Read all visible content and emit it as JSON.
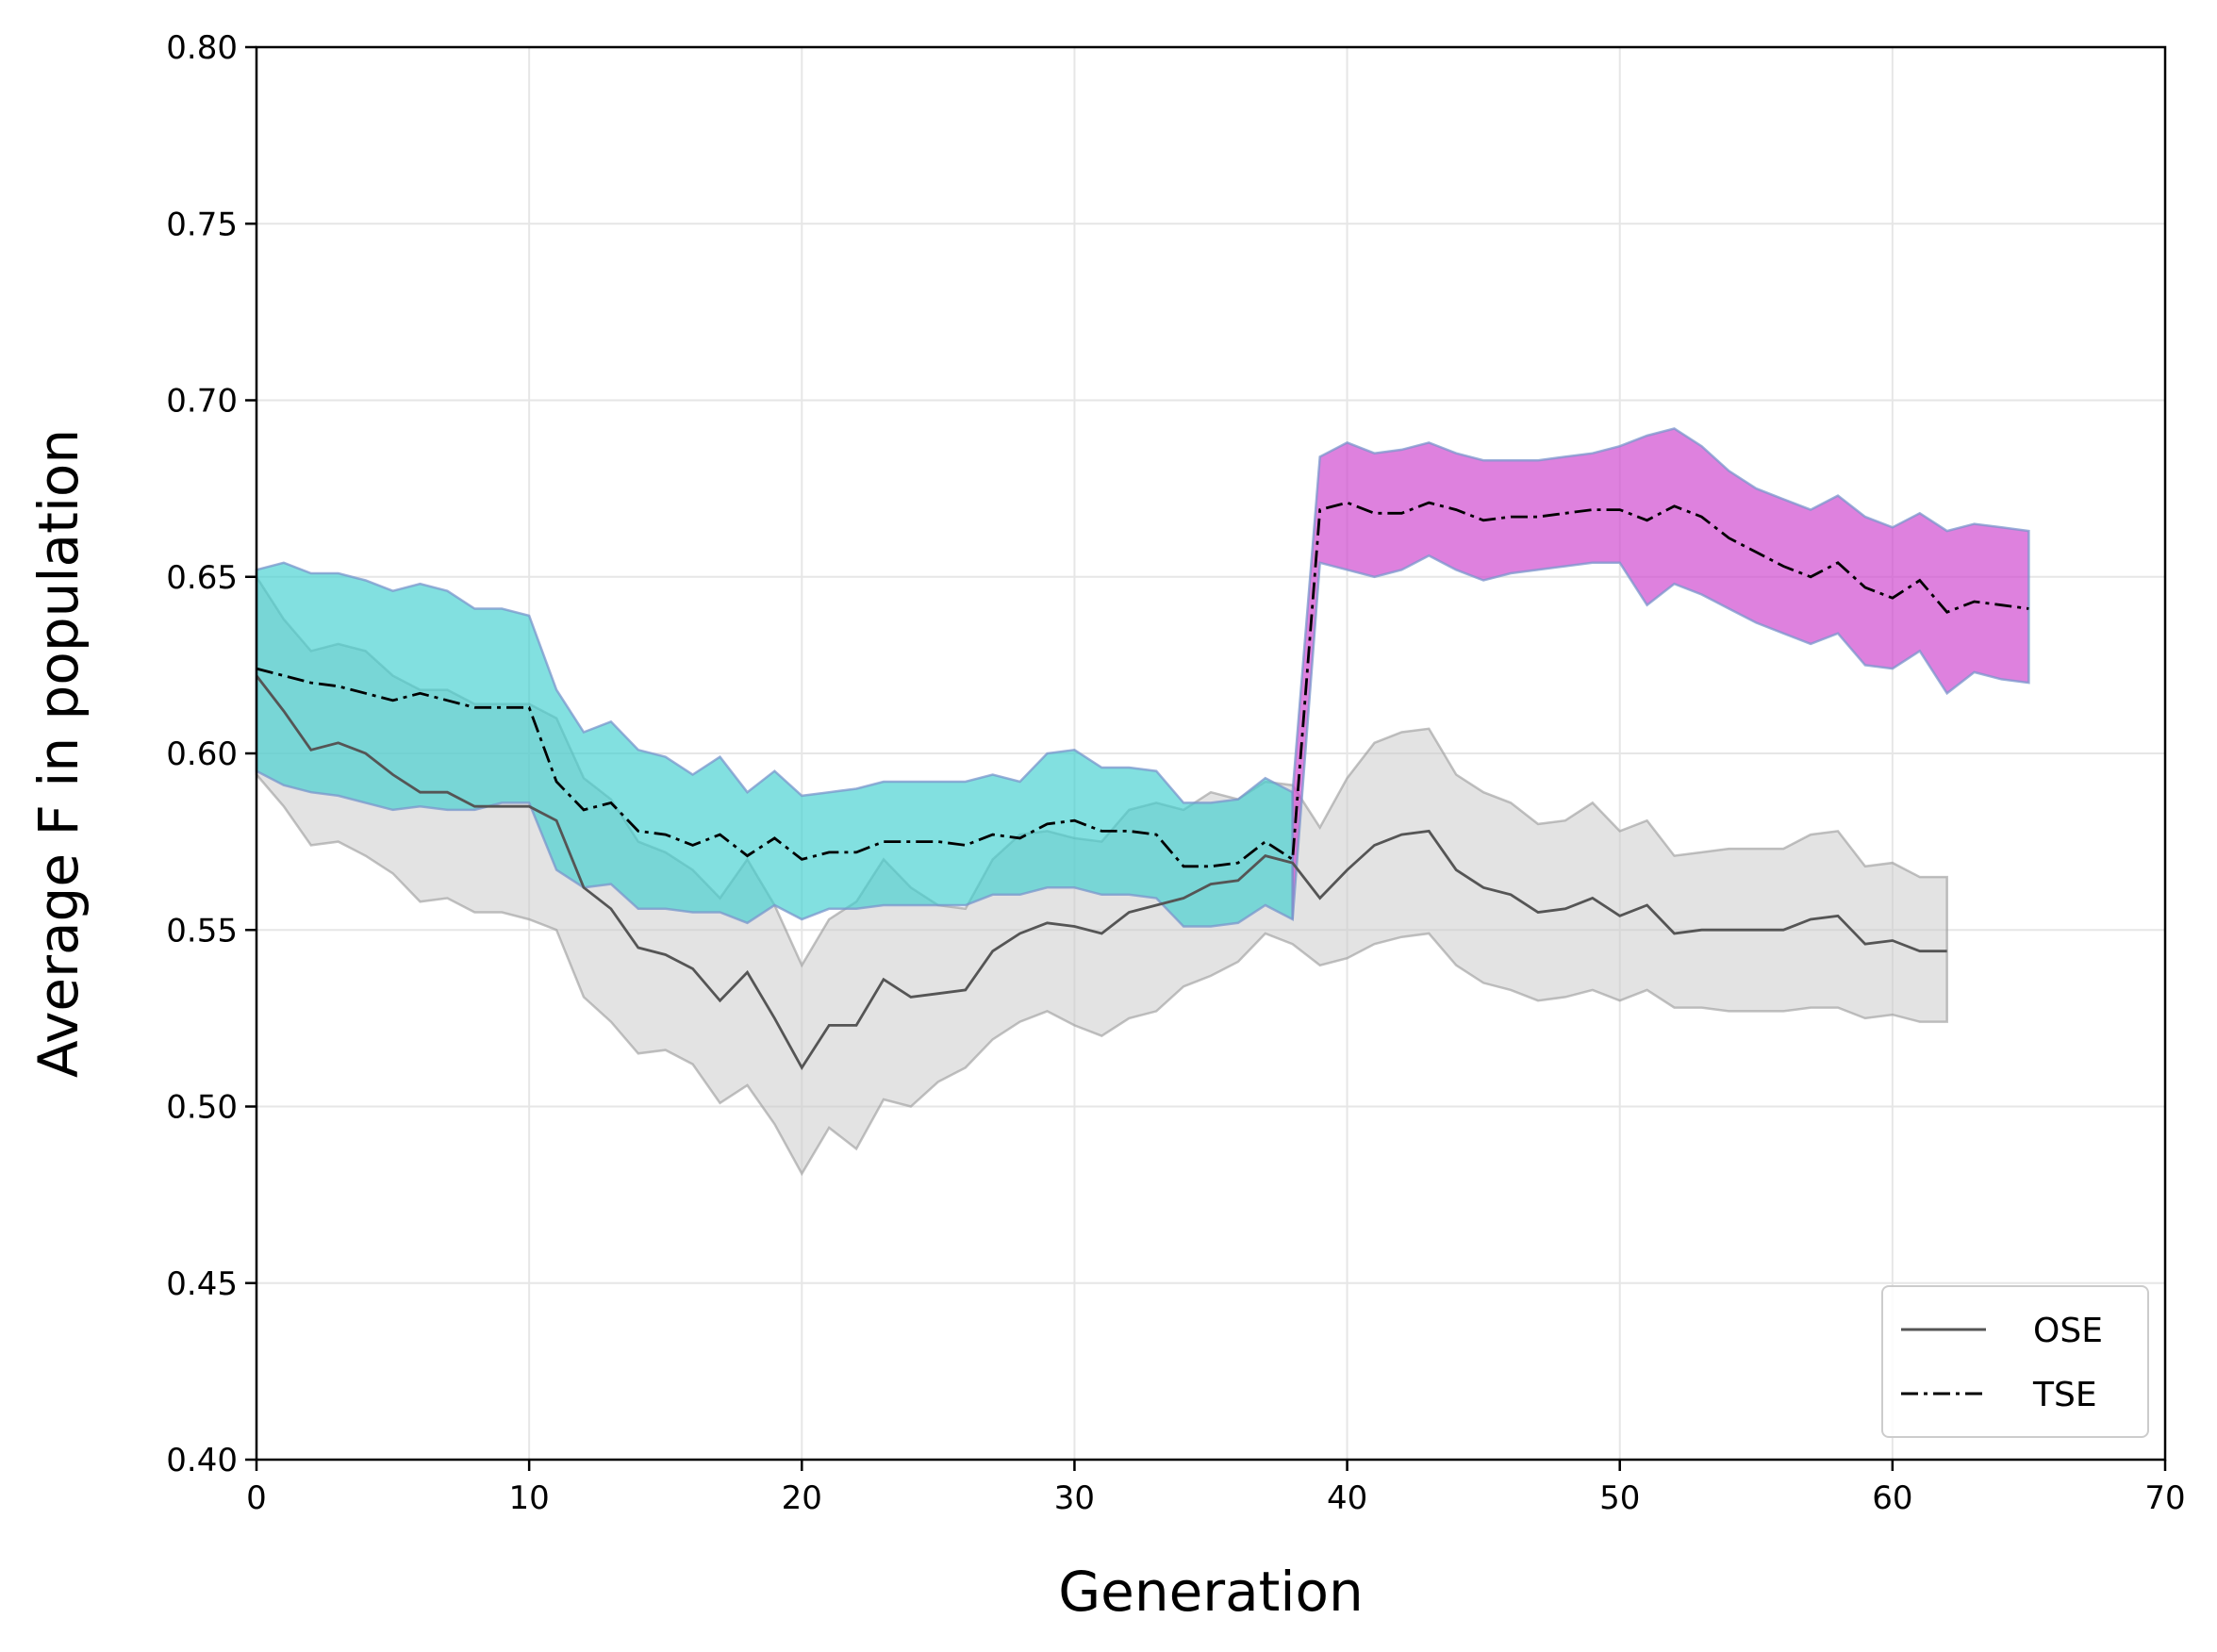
{
  "chart_data": {
    "type": "line",
    "title": "",
    "xlabel": "Generation",
    "ylabel": "Average F in population",
    "xlim": [
      0,
      70
    ],
    "ylim": [
      0.4,
      0.8
    ],
    "grid": true,
    "legend_position": "bottom-right",
    "x_ticks": [
      "0",
      "10",
      "20",
      "30",
      "40",
      "50",
      "60",
      "70"
    ],
    "y_ticks": [
      "0.40",
      "0.45",
      "0.50",
      "0.55",
      "0.60",
      "0.65",
      "0.70",
      "0.75",
      "0.80"
    ],
    "colors": {
      "ose_band": "#c8c8c8",
      "ose_line": "#555555",
      "tse_band_phase1": "#3fcfcf",
      "tse_band_phase2": "#cf45cf",
      "tse_line": "#000000",
      "band_edge": "#7a96cc",
      "grid": "#e6e6e6"
    },
    "series": [
      {
        "name": "OSE",
        "style": "solid",
        "x": [
          0,
          1,
          2,
          3,
          4,
          5,
          6,
          7,
          8,
          9,
          10,
          11,
          12,
          13,
          14,
          15,
          16,
          17,
          18,
          19,
          20,
          21,
          22,
          23,
          24,
          25,
          26,
          27,
          28,
          29,
          30,
          31,
          32,
          33,
          34,
          35,
          36,
          37,
          38,
          39,
          40,
          41,
          42,
          43,
          44,
          45,
          46,
          47,
          48,
          49,
          50,
          51,
          52,
          53,
          54,
          55,
          56,
          57,
          58,
          59,
          60,
          61,
          62
        ],
        "mean": [
          0.622,
          0.612,
          0.601,
          0.603,
          0.6,
          0.594,
          0.589,
          0.589,
          0.585,
          0.585,
          0.585,
          0.581,
          0.562,
          0.556,
          0.545,
          0.543,
          0.539,
          0.53,
          0.538,
          0.525,
          0.511,
          0.523,
          0.523,
          0.536,
          0.531,
          0.532,
          0.533,
          0.544,
          0.549,
          0.552,
          0.551,
          0.549,
          0.555,
          0.557,
          0.559,
          0.563,
          0.564,
          0.571,
          0.569,
          0.559,
          0.567,
          0.574,
          0.577,
          0.578,
          0.567,
          0.562,
          0.56,
          0.555,
          0.556,
          0.559,
          0.554,
          0.557,
          0.549,
          0.55,
          0.55,
          0.55,
          0.55,
          0.553,
          0.554,
          0.546,
          0.547,
          0.544,
          0.544
        ],
        "upper": [
          0.65,
          0.638,
          0.629,
          0.631,
          0.629,
          0.622,
          0.618,
          0.618,
          0.614,
          0.614,
          0.614,
          0.61,
          0.593,
          0.587,
          0.575,
          0.572,
          0.567,
          0.559,
          0.57,
          0.557,
          0.54,
          0.553,
          0.558,
          0.57,
          0.562,
          0.557,
          0.556,
          0.57,
          0.577,
          0.578,
          0.576,
          0.575,
          0.584,
          0.586,
          0.584,
          0.589,
          0.587,
          0.592,
          0.591,
          0.579,
          0.593,
          0.603,
          0.606,
          0.607,
          0.594,
          0.589,
          0.586,
          0.58,
          0.581,
          0.586,
          0.578,
          0.581,
          0.571,
          0.572,
          0.573,
          0.573,
          0.573,
          0.577,
          0.578,
          0.568,
          0.569,
          0.565,
          0.565
        ],
        "lower": [
          0.594,
          0.585,
          0.574,
          0.575,
          0.571,
          0.566,
          0.558,
          0.559,
          0.555,
          0.555,
          0.553,
          0.55,
          0.531,
          0.524,
          0.515,
          0.516,
          0.512,
          0.501,
          0.506,
          0.495,
          0.481,
          0.494,
          0.488,
          0.502,
          0.5,
          0.507,
          0.511,
          0.519,
          0.524,
          0.527,
          0.523,
          0.52,
          0.525,
          0.527,
          0.534,
          0.537,
          0.541,
          0.549,
          0.546,
          0.54,
          0.542,
          0.546,
          0.548,
          0.549,
          0.54,
          0.535,
          0.533,
          0.53,
          0.531,
          0.533,
          0.53,
          0.533,
          0.528,
          0.528,
          0.527,
          0.527,
          0.527,
          0.528,
          0.528,
          0.525,
          0.526,
          0.524,
          0.524
        ]
      },
      {
        "name": "TSE",
        "style": "dashdot",
        "x": [
          0,
          1,
          2,
          3,
          4,
          5,
          6,
          7,
          8,
          9,
          10,
          11,
          12,
          13,
          14,
          15,
          16,
          17,
          18,
          19,
          20,
          21,
          22,
          23,
          24,
          25,
          26,
          27,
          28,
          29,
          30,
          31,
          32,
          33,
          34,
          35,
          36,
          37,
          38,
          39,
          40,
          41,
          42,
          43,
          44,
          45,
          46,
          47,
          48,
          49,
          50,
          51,
          52,
          53,
          54,
          55,
          56,
          57,
          58,
          59,
          60,
          61,
          62,
          63,
          64,
          65
        ],
        "mean": [
          0.624,
          0.622,
          0.62,
          0.619,
          0.617,
          0.615,
          0.617,
          0.615,
          0.613,
          0.613,
          0.613,
          0.592,
          0.584,
          0.586,
          0.578,
          0.577,
          0.574,
          0.577,
          0.571,
          0.576,
          0.57,
          0.572,
          0.572,
          0.575,
          0.575,
          0.575,
          0.574,
          0.577,
          0.576,
          0.58,
          0.581,
          0.578,
          0.578,
          0.577,
          0.568,
          0.568,
          0.569,
          0.575,
          0.57,
          0.669,
          0.671,
          0.668,
          0.668,
          0.671,
          0.669,
          0.666,
          0.667,
          0.667,
          0.668,
          0.669,
          0.669,
          0.666,
          0.67,
          0.667,
          0.661,
          0.657,
          0.653,
          0.65,
          0.654,
          0.647,
          0.644,
          0.649,
          0.64,
          0.643,
          0.642,
          0.641
        ],
        "upper": [
          0.652,
          0.654,
          0.651,
          0.651,
          0.649,
          0.646,
          0.648,
          0.646,
          0.641,
          0.641,
          0.639,
          0.618,
          0.606,
          0.609,
          0.601,
          0.599,
          0.594,
          0.599,
          0.589,
          0.595,
          0.588,
          0.589,
          0.59,
          0.592,
          0.592,
          0.592,
          0.592,
          0.594,
          0.592,
          0.6,
          0.601,
          0.596,
          0.596,
          0.595,
          0.586,
          0.586,
          0.587,
          0.593,
          0.589,
          0.684,
          0.688,
          0.685,
          0.686,
          0.688,
          0.685,
          0.683,
          0.683,
          0.683,
          0.684,
          0.685,
          0.687,
          0.69,
          0.692,
          0.687,
          0.68,
          0.675,
          0.672,
          0.669,
          0.673,
          0.667,
          0.664,
          0.668,
          0.663,
          0.665,
          0.664,
          0.663
        ],
        "lower": [
          0.595,
          0.591,
          0.589,
          0.588,
          0.586,
          0.584,
          0.585,
          0.584,
          0.584,
          0.586,
          0.586,
          0.567,
          0.562,
          0.563,
          0.556,
          0.556,
          0.555,
          0.555,
          0.552,
          0.557,
          0.553,
          0.556,
          0.556,
          0.557,
          0.557,
          0.557,
          0.557,
          0.56,
          0.56,
          0.562,
          0.562,
          0.56,
          0.56,
          0.559,
          0.551,
          0.551,
          0.552,
          0.557,
          0.553,
          0.654,
          0.652,
          0.65,
          0.652,
          0.656,
          0.652,
          0.649,
          0.651,
          0.652,
          0.653,
          0.654,
          0.654,
          0.642,
          0.648,
          0.645,
          0.641,
          0.637,
          0.634,
          0.631,
          0.634,
          0.625,
          0.624,
          0.629,
          0.617,
          0.623,
          0.621,
          0.62
        ],
        "phase_split_x": 38
      }
    ]
  }
}
